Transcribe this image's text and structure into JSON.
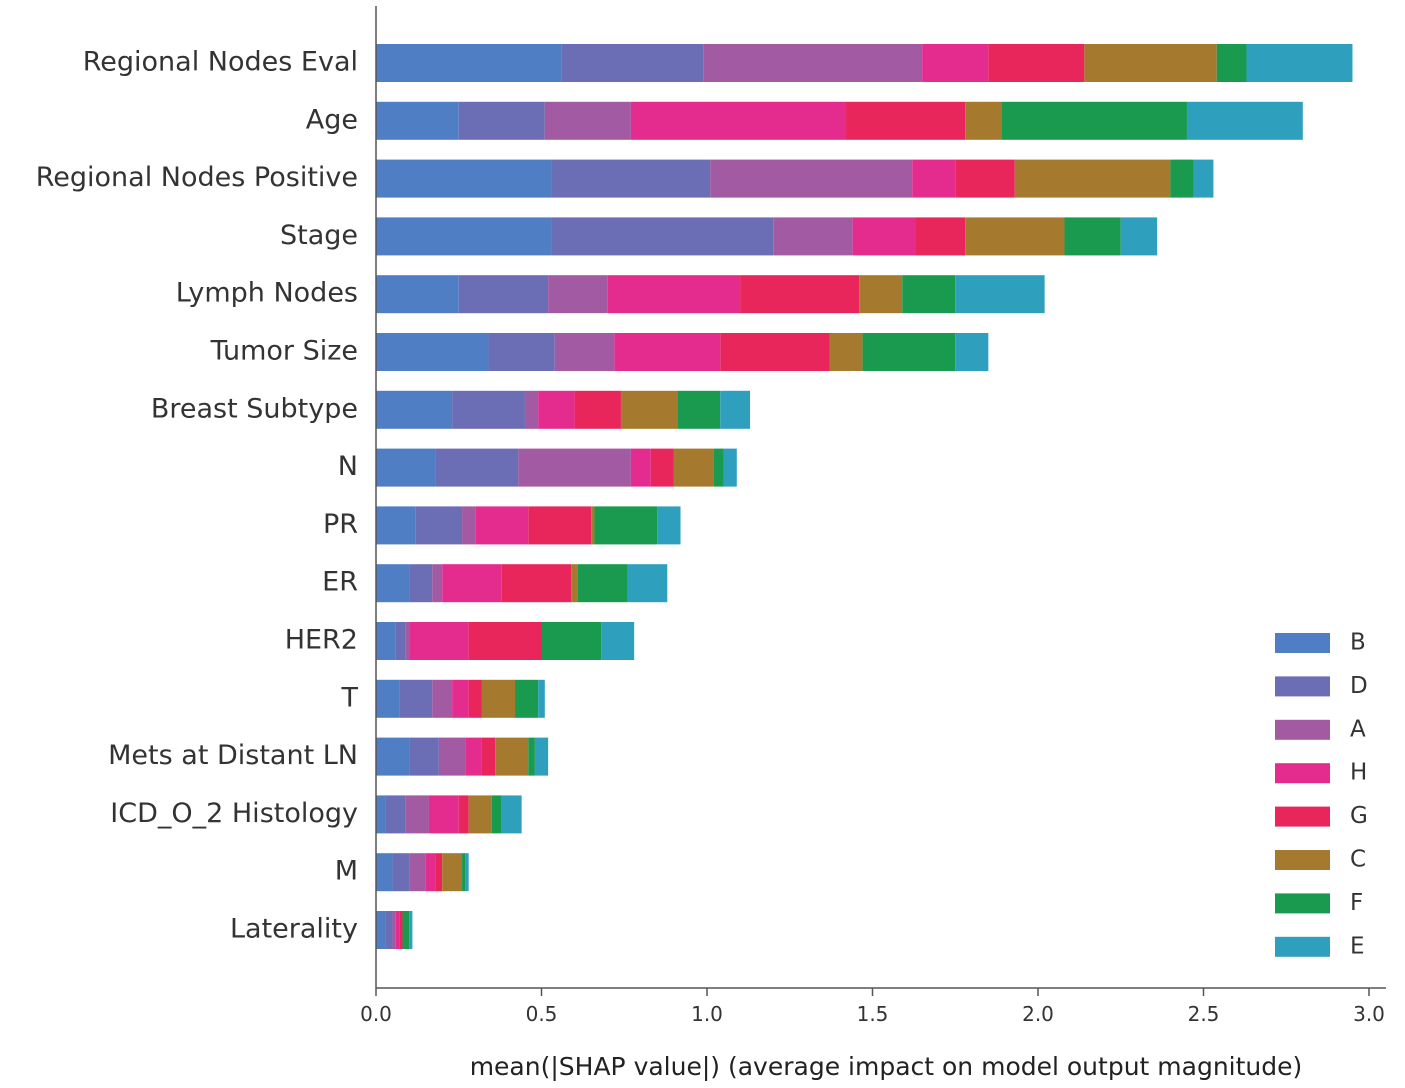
{
  "chart_data": {
    "type": "bar",
    "orientation": "horizontal",
    "stacked": true,
    "title": "",
    "xlabel": "mean(|SHAP value|) (average impact on model output magnitude)",
    "ylabel": "",
    "xlim": [
      0,
      3.0
    ],
    "xticks": [
      0.0,
      0.5,
      1.0,
      1.5,
      2.0,
      2.5,
      3.0
    ],
    "xtick_labels": [
      "0.0",
      "0.5",
      "1.0",
      "1.5",
      "2.0",
      "2.5",
      "3.0"
    ],
    "legend_position": "bottom-right",
    "grid": false,
    "categories": [
      "Regional Nodes Eval",
      "Age",
      "Regional Nodes Positive",
      "Stage",
      "Lymph Nodes",
      "Tumor Size",
      "Breast Subtype",
      "N",
      "PR",
      "ER",
      "HER2",
      "T",
      "Mets at Distant LN",
      "ICD_O_2 Histology",
      "M",
      "Laterality"
    ],
    "series": [
      {
        "name": "B",
        "color": "#4f7ec4",
        "values": [
          0.56,
          0.25,
          0.53,
          0.53,
          0.25,
          0.34,
          0.23,
          0.18,
          0.12,
          0.1,
          0.06,
          0.07,
          0.1,
          0.03,
          0.05,
          0.03
        ]
      },
      {
        "name": "D",
        "color": "#6b6db5",
        "values": [
          0.43,
          0.26,
          0.48,
          0.67,
          0.27,
          0.2,
          0.22,
          0.25,
          0.14,
          0.07,
          0.03,
          0.1,
          0.09,
          0.06,
          0.05,
          0.02
        ]
      },
      {
        "name": "A",
        "color": "#a25aa3",
        "values": [
          0.66,
          0.26,
          0.61,
          0.24,
          0.18,
          0.18,
          0.04,
          0.34,
          0.04,
          0.03,
          0.01,
          0.06,
          0.08,
          0.07,
          0.05,
          0.01
        ]
      },
      {
        "name": "H",
        "color": "#e42b8e",
        "values": [
          0.2,
          0.65,
          0.13,
          0.19,
          0.4,
          0.32,
          0.11,
          0.06,
          0.16,
          0.18,
          0.18,
          0.05,
          0.05,
          0.09,
          0.03,
          0.01
        ]
      },
      {
        "name": "G",
        "color": "#e8265c",
        "values": [
          0.29,
          0.36,
          0.18,
          0.15,
          0.36,
          0.33,
          0.14,
          0.07,
          0.19,
          0.21,
          0.22,
          0.04,
          0.04,
          0.03,
          0.02,
          0.01
        ]
      },
      {
        "name": "C",
        "color": "#a57a2f",
        "values": [
          0.4,
          0.11,
          0.47,
          0.3,
          0.13,
          0.1,
          0.17,
          0.12,
          0.01,
          0.02,
          0.0,
          0.1,
          0.1,
          0.07,
          0.06,
          0.0
        ]
      },
      {
        "name": "F",
        "color": "#1a9a4f",
        "values": [
          0.09,
          0.56,
          0.07,
          0.17,
          0.16,
          0.28,
          0.13,
          0.03,
          0.19,
          0.15,
          0.18,
          0.07,
          0.02,
          0.03,
          0.01,
          0.02
        ]
      },
      {
        "name": "E",
        "color": "#2f9fbe",
        "values": [
          0.32,
          0.35,
          0.06,
          0.11,
          0.27,
          0.1,
          0.09,
          0.04,
          0.07,
          0.12,
          0.1,
          0.02,
          0.04,
          0.06,
          0.01,
          0.01
        ]
      }
    ],
    "legend_order": [
      "B",
      "D",
      "A",
      "H",
      "G",
      "C",
      "F",
      "E"
    ]
  }
}
